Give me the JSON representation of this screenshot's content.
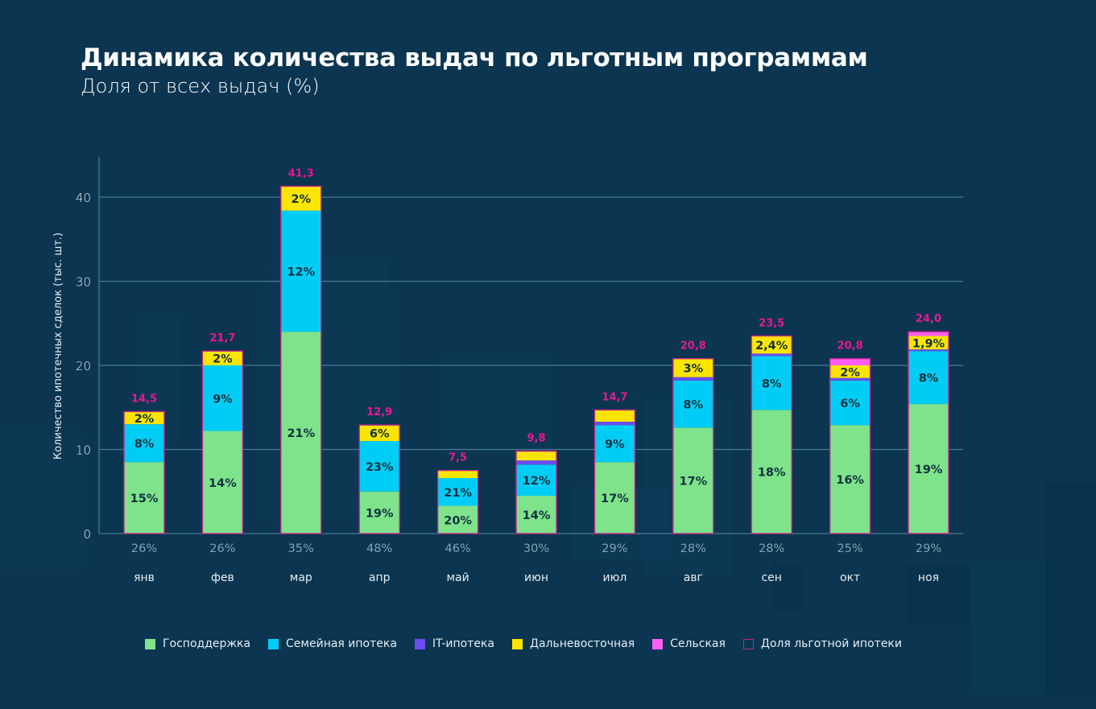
{
  "header": {
    "title": "Динамика количества выдач по льготным программам",
    "subtitle": "Доля от всех выдач (%)"
  },
  "colors": {
    "background": "#0b3550",
    "grid": "#4a7a93",
    "axis_text": "#e8eef3",
    "share_text": "#7fa3b8",
    "total_label": "#e9188f",
    "bar_border": "#c2258a",
    "segment_label": "#13323f"
  },
  "chart_data": {
    "type": "bar",
    "stacked": true,
    "title": "Динамика количества выдач по льготным программам",
    "subtitle": "Доля от всех выдач (%)",
    "xlabel": "",
    "ylabel": "Количество ипотечных сделок (тыс. шт.)",
    "ylim": [
      0,
      45
    ],
    "yticks": [
      0,
      10,
      20,
      30,
      40
    ],
    "grid": true,
    "legend_position": "bottom",
    "categories": [
      "янв",
      "фев",
      "мар",
      "апр",
      "май",
      "июн",
      "июл",
      "авг",
      "сен",
      "окт",
      "ноя"
    ],
    "series": [
      {
        "name": "Господдержка",
        "color": "#7ee38a",
        "values": [
          8.5,
          12.2,
          24.0,
          5.0,
          3.3,
          4.5,
          8.5,
          12.6,
          14.7,
          12.9,
          15.4
        ],
        "labels": [
          "15%",
          "14%",
          "21%",
          "19%",
          "20%",
          "14%",
          "17%",
          "17%",
          "18%",
          "16%",
          "19%"
        ]
      },
      {
        "name": "Семейная ипотека",
        "color": "#00cdf5",
        "values": [
          4.5,
          7.8,
          14.4,
          6.0,
          3.3,
          3.7,
          4.4,
          5.6,
          6.4,
          5.3,
          6.3
        ],
        "labels": [
          "8%",
          "9%",
          "12%",
          "23%",
          "21%",
          "12%",
          "9%",
          "8%",
          "8%",
          "6%",
          "8%"
        ]
      },
      {
        "name": "IT-ипотека",
        "color": "#6a4df0",
        "values": [
          0,
          0,
          0,
          0,
          0,
          0.5,
          0.4,
          0.4,
          0.3,
          0.3,
          0.2
        ],
        "labels": [
          "",
          "",
          "",
          "",
          "",
          "",
          "",
          "",
          "",
          "",
          ""
        ]
      },
      {
        "name": "Дальневосточная",
        "color": "#fae500",
        "values": [
          1.5,
          1.7,
          2.9,
          1.9,
          0.9,
          1.1,
          1.4,
          2.2,
          2.1,
          1.5,
          1.6
        ],
        "labels": [
          "2%",
          "2%",
          "2%",
          "6%",
          "",
          "",
          "",
          "3%",
          "2,4%",
          "2%",
          "1,9%"
        ]
      },
      {
        "name": "Сельская",
        "color": "#ff5ef5",
        "values": [
          0,
          0,
          0,
          0,
          0,
          0,
          0,
          0,
          0,
          0.8,
          0.5
        ],
        "labels": [
          "",
          "",
          "",
          "",
          "",
          "",
          "",
          "",
          "",
          "",
          ""
        ]
      }
    ],
    "totals": [
      14.5,
      21.7,
      41.3,
      12.9,
      7.5,
      9.8,
      14.7,
      20.8,
      23.5,
      20.8,
      24.0
    ],
    "total_labels": [
      "14,5",
      "21,7",
      "41,3",
      "12,9",
      "7,5",
      "9,8",
      "14,7",
      "20,8",
      "23,5",
      "20,8",
      "24,0"
    ],
    "share_of_preferential": [
      "26%",
      "26%",
      "35%",
      "48%",
      "46%",
      "30%",
      "29%",
      "28%",
      "28%",
      "25%",
      "29%"
    ],
    "legend": [
      {
        "label": "Господдержка",
        "color": "#7ee38a",
        "style": "filled"
      },
      {
        "label": "Семейная ипотека",
        "color": "#00cdf5",
        "style": "filled"
      },
      {
        "label": "IT-ипотека",
        "color": "#6a4df0",
        "style": "filled"
      },
      {
        "label": "Дальневосточная",
        "color": "#fae500",
        "style": "filled"
      },
      {
        "label": "Сельская",
        "color": "#ff5ef5",
        "style": "filled"
      },
      {
        "label": "Доля льготной ипотеки",
        "color": "#c2258a",
        "style": "outline"
      }
    ]
  }
}
